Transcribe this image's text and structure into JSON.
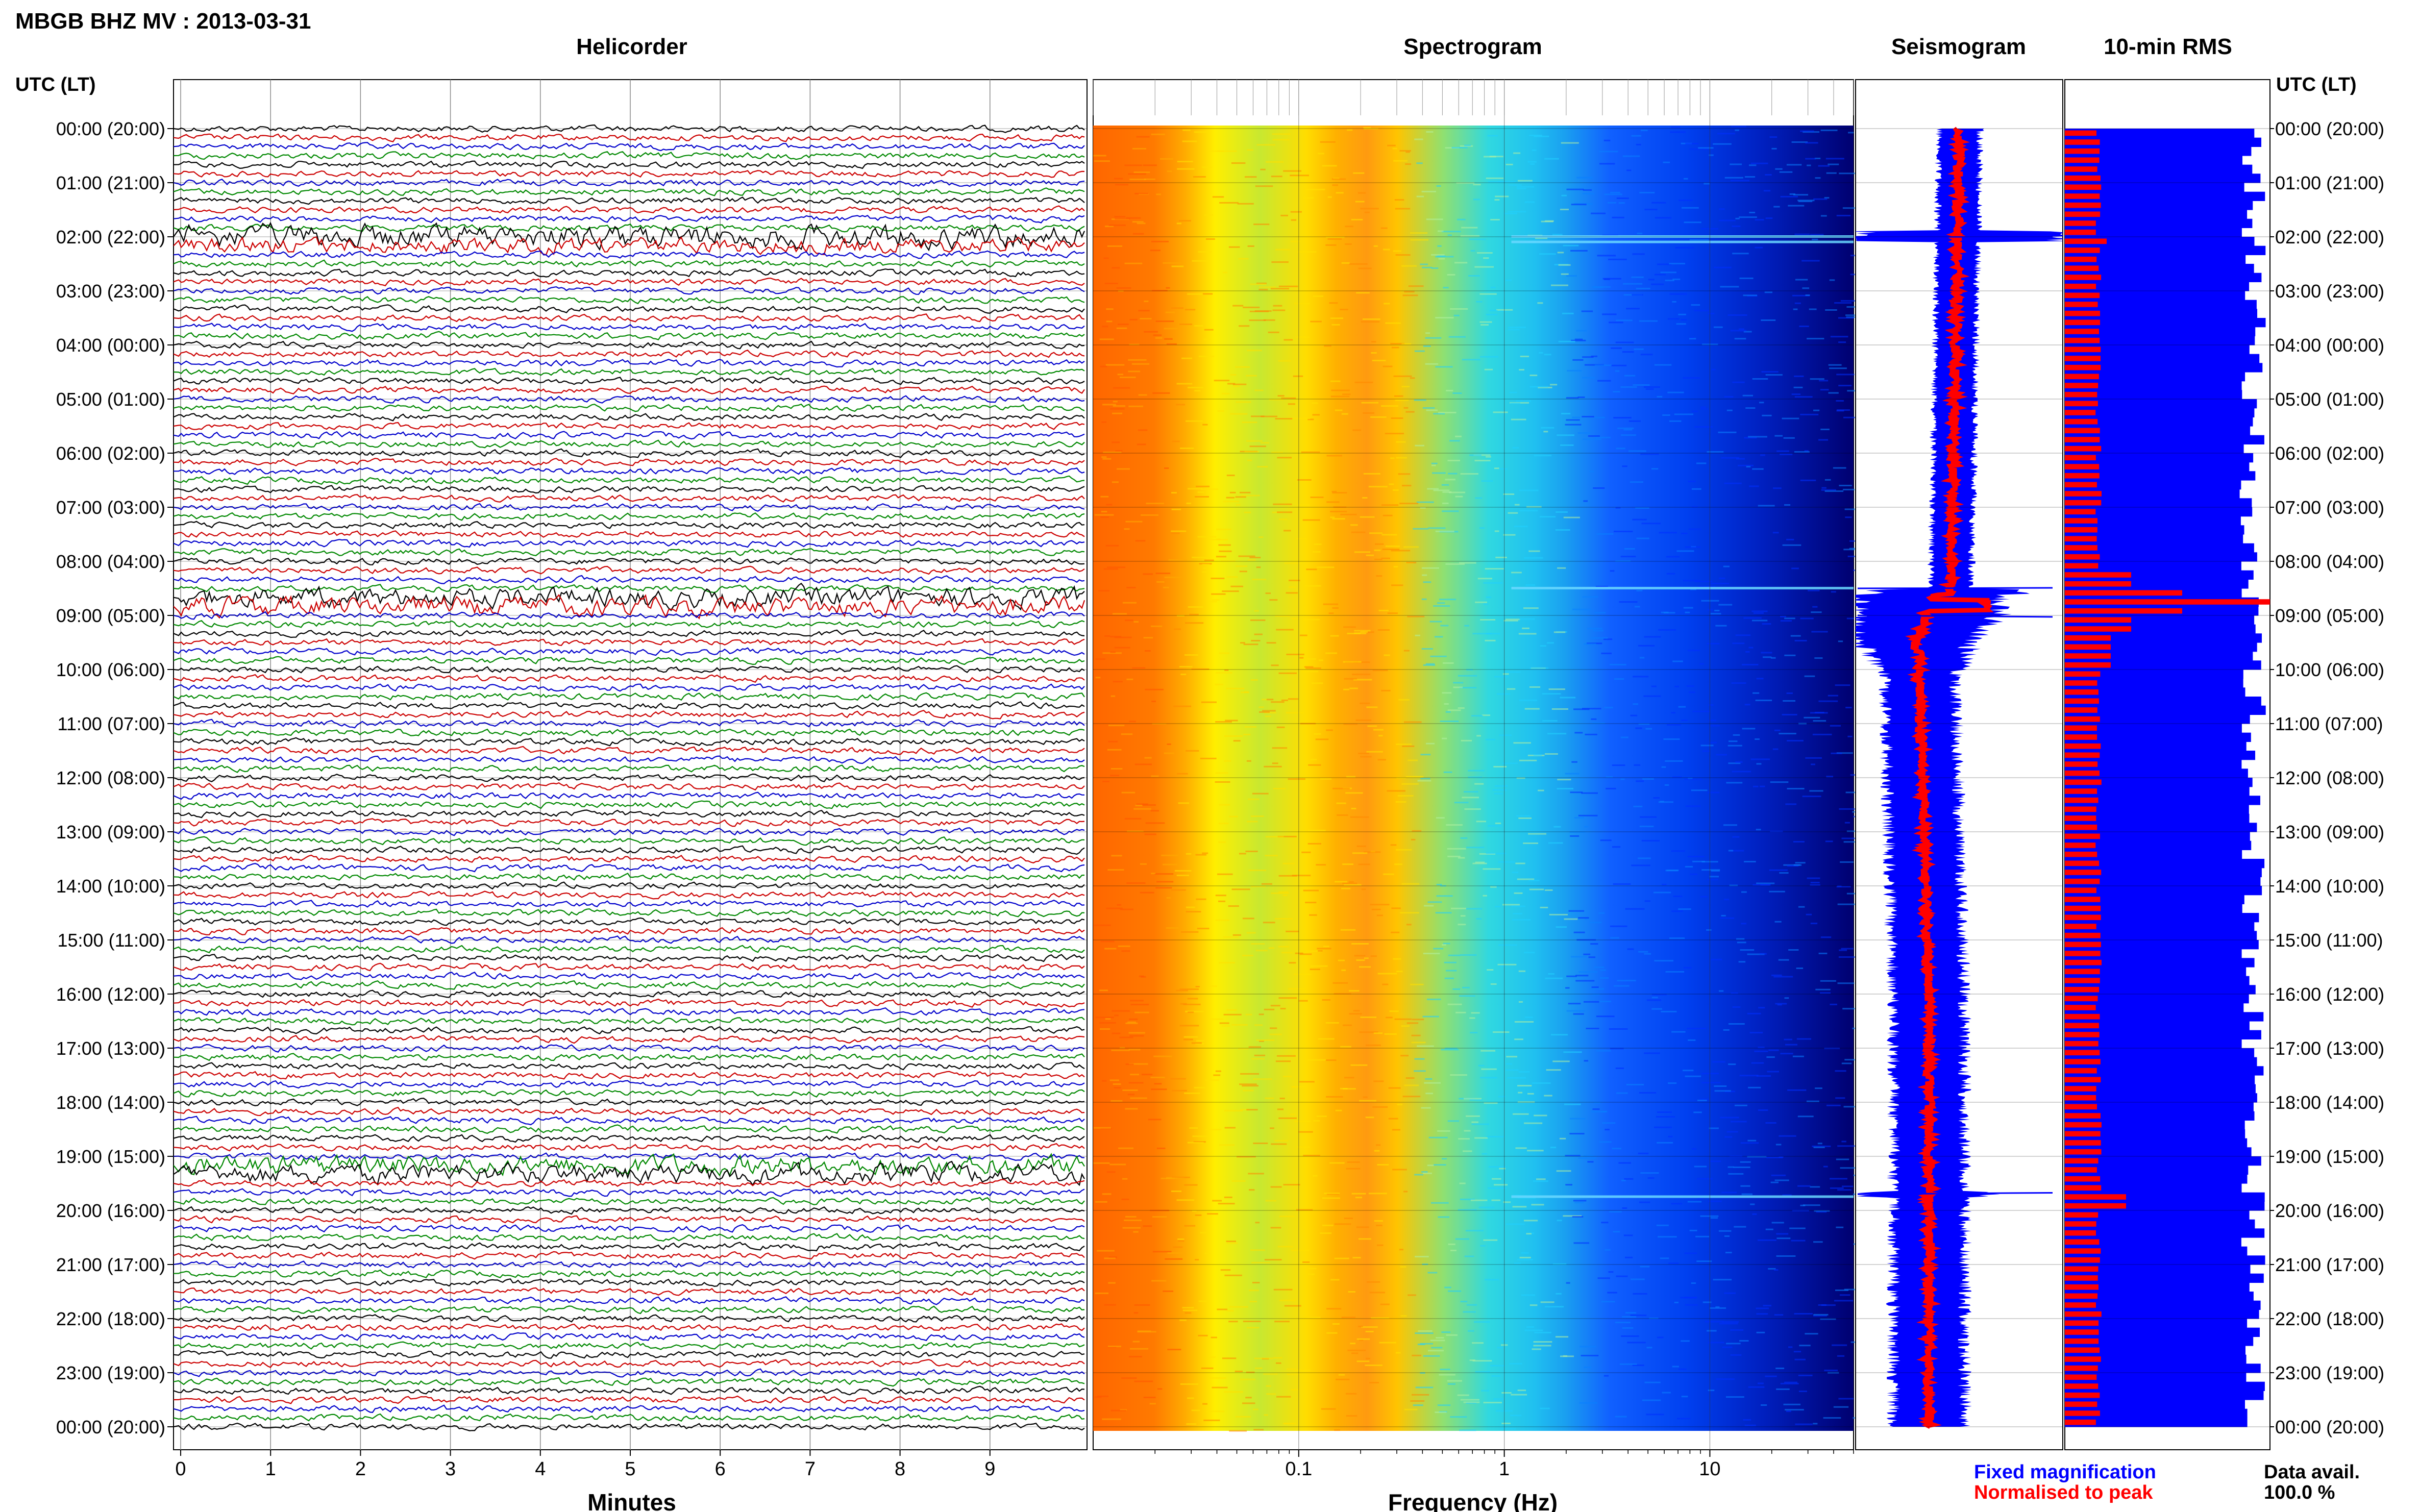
{
  "header": {
    "station_title": "MBGB BHZ MV : 2013-03-31",
    "axis_label_left": "UTC (LT)",
    "axis_label_right": "UTC (LT)"
  },
  "panels": {
    "helicorder": "Helicorder",
    "spectrogram": "Spectrogram",
    "seismogram": "Seismogram",
    "rms": "10-min RMS"
  },
  "footer": {
    "minutes_label": "Minutes",
    "frequency_label": "Frequency (Hz)",
    "legend_fixed": "Fixed magnification",
    "legend_normalised": "Normalised to peak",
    "data_avail_label": "Data avail.",
    "data_avail_value": "100.0 %"
  },
  "colors": {
    "fixed": "#0000ff",
    "normalised": "#ff0000",
    "trace_cycle": [
      "#000000",
      "#cc0000",
      "#0000cc",
      "#008800"
    ]
  },
  "time_labels": [
    "00:00 (20:00)",
    "01:00 (21:00)",
    "02:00 (22:00)",
    "03:00 (23:00)",
    "04:00 (00:00)",
    "05:00 (01:00)",
    "06:00 (02:00)",
    "07:00 (03:00)",
    "08:00 (04:00)",
    "09:00 (05:00)",
    "10:00 (06:00)",
    "11:00 (07:00)",
    "12:00 (08:00)",
    "13:00 (09:00)",
    "14:00 (10:00)",
    "15:00 (11:00)",
    "16:00 (12:00)",
    "17:00 (13:00)",
    "18:00 (14:00)",
    "19:00 (15:00)",
    "20:00 (16:00)",
    "21:00 (17:00)",
    "22:00 (18:00)",
    "23:00 (19:00)",
    "00:00 (20:00)"
  ],
  "chart_data": [
    {
      "type": "line",
      "title": "Helicorder",
      "xlabel": "Minutes",
      "xlim": [
        0,
        10
      ],
      "x_ticks": [
        "0",
        "1",
        "2",
        "3",
        "4",
        "5",
        "6",
        "7",
        "8",
        "9"
      ],
      "rows": 144,
      "minutes_per_row": 10,
      "bursts_hour": [
        2.05,
        8.75,
        19.25
      ]
    },
    {
      "type": "heatmap",
      "title": "Spectrogram",
      "xlabel": "Frequency (Hz)",
      "xscale": "log",
      "xlim": [
        0.01,
        50
      ],
      "x_ticks": [
        "0.1",
        "1",
        "10"
      ],
      "band_line_hours": [
        2.0,
        2.1,
        8.5,
        19.75
      ]
    },
    {
      "type": "line",
      "title": "Seismogram",
      "series": [
        {
          "name": "Fixed magnification"
        },
        {
          "name": "Normalised to peak"
        }
      ],
      "spike_hours": [
        2.0,
        8.5,
        9.0,
        19.7
      ]
    },
    {
      "type": "bar",
      "title": "10-min RMS",
      "interval_minutes": 10,
      "series": [
        {
          "name": "Fixed magnification"
        },
        {
          "name": "Normalised to peak"
        }
      ],
      "peak_hour": 8.7,
      "data_availability_percent": 100.0
    }
  ]
}
